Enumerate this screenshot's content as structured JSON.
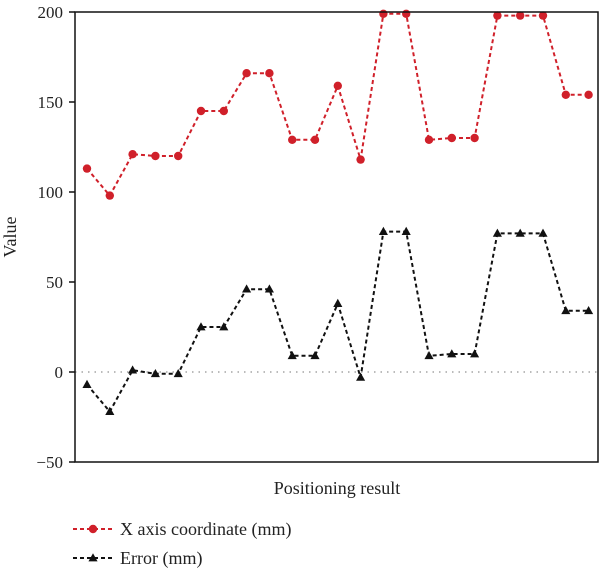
{
  "chart_data": {
    "type": "line",
    "xlabel": "Positioning result",
    "ylabel": "Value",
    "ylim": [
      -50,
      200
    ],
    "yticks": [
      -50,
      0,
      50,
      100,
      150,
      200
    ],
    "ytick_labels": [
      "−50",
      "0",
      "50",
      "100",
      "150",
      "200"
    ],
    "x": [
      1,
      2,
      3,
      4,
      5,
      6,
      7,
      8,
      9,
      10,
      11,
      12,
      13,
      14,
      15,
      16,
      17,
      18,
      19,
      20,
      21,
      22,
      23
    ],
    "zero_reference_line": true,
    "legend_position": "bottom-left",
    "series": [
      {
        "name": "X axis coordinate (mm)",
        "color": "#d0202a",
        "marker": "circle",
        "line_style": "dashed",
        "values": [
          113,
          98,
          121,
          120,
          120,
          145,
          145,
          166,
          166,
          129,
          129,
          159,
          118,
          199,
          199,
          129,
          130,
          130,
          198,
          198,
          198,
          154,
          154
        ]
      },
      {
        "name": "Error (mm)",
        "color": "#111111",
        "marker": "triangle",
        "line_style": "dashed",
        "values": [
          -7,
          -22,
          1,
          -1,
          -1,
          25,
          25,
          46,
          46,
          9,
          9,
          38,
          -3,
          78,
          78,
          9,
          10,
          10,
          77,
          77,
          77,
          34,
          34
        ]
      }
    ]
  }
}
